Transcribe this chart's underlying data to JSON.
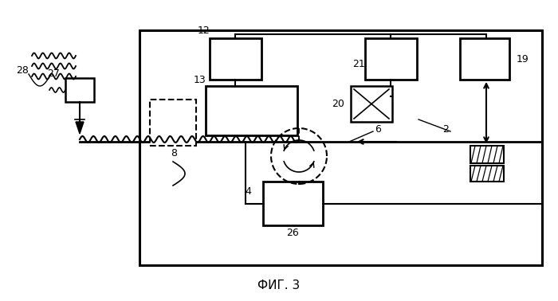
{
  "title": "ФИГ. 3",
  "bg_color": "#ffffff",
  "fig_width": 7.0,
  "fig_height": 3.78,
  "dpi": 100
}
